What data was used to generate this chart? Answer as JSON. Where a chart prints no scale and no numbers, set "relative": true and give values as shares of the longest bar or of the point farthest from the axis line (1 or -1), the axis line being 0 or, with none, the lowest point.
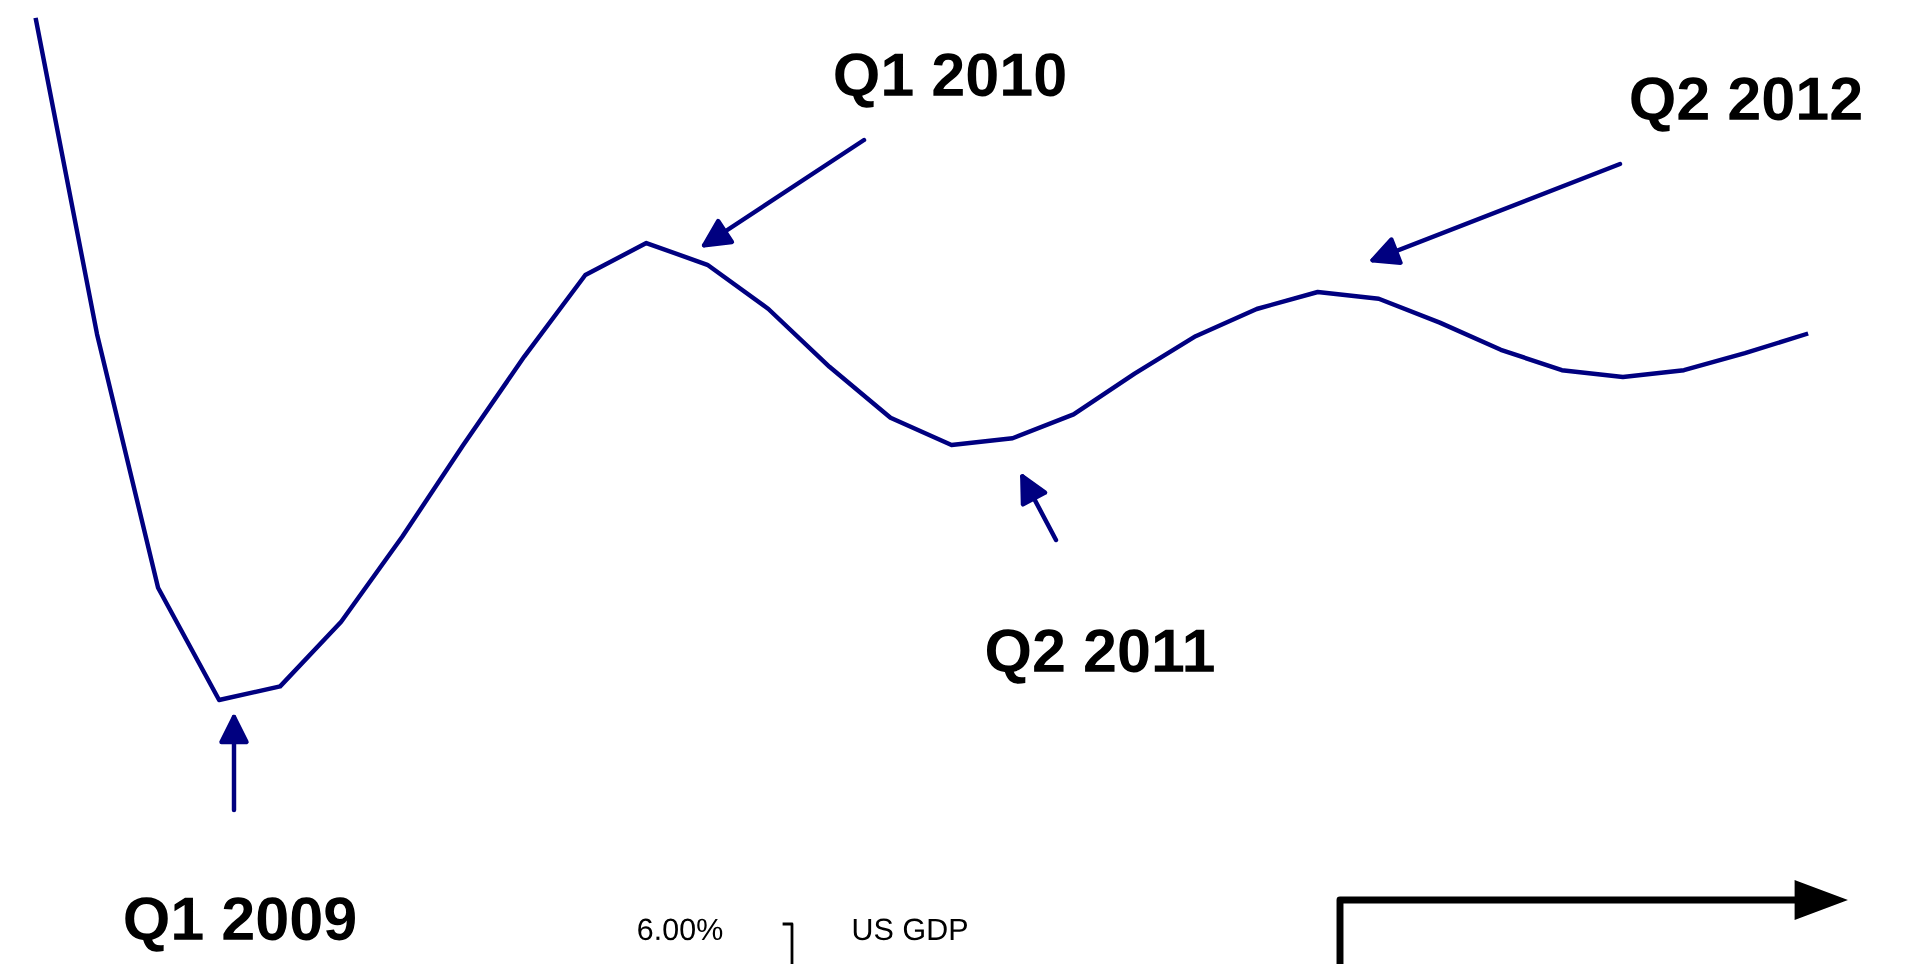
{
  "chart_data": {
    "type": "line",
    "relative": true,
    "categories": [
      null,
      null,
      null,
      null,
      null,
      null,
      null,
      null,
      null,
      null,
      null,
      null,
      null,
      null,
      null,
      null,
      null,
      null,
      null,
      null,
      null,
      null,
      null,
      null,
      null,
      null,
      null,
      null,
      null,
      null
    ],
    "series": [
      {
        "color": "#000080",
        "values": [
          1.0,
          0.538,
          0.165,
          0.0,
          0.02,
          0.115,
          0.24,
          0.375,
          0.505,
          0.625,
          0.672,
          0.64,
          0.575,
          0.49,
          0.415,
          0.375,
          0.385,
          0.42,
          0.48,
          0.535,
          0.575,
          0.6,
          0.59,
          0.555,
          0.515,
          0.485,
          0.475,
          0.485,
          0.51,
          0.538
        ]
      }
    ],
    "annotations": [
      "Q1 2009",
      "Q1 2010",
      "Q2 2011",
      "Q2 2012",
      "6.00%",
      "US GDP"
    ]
  }
}
